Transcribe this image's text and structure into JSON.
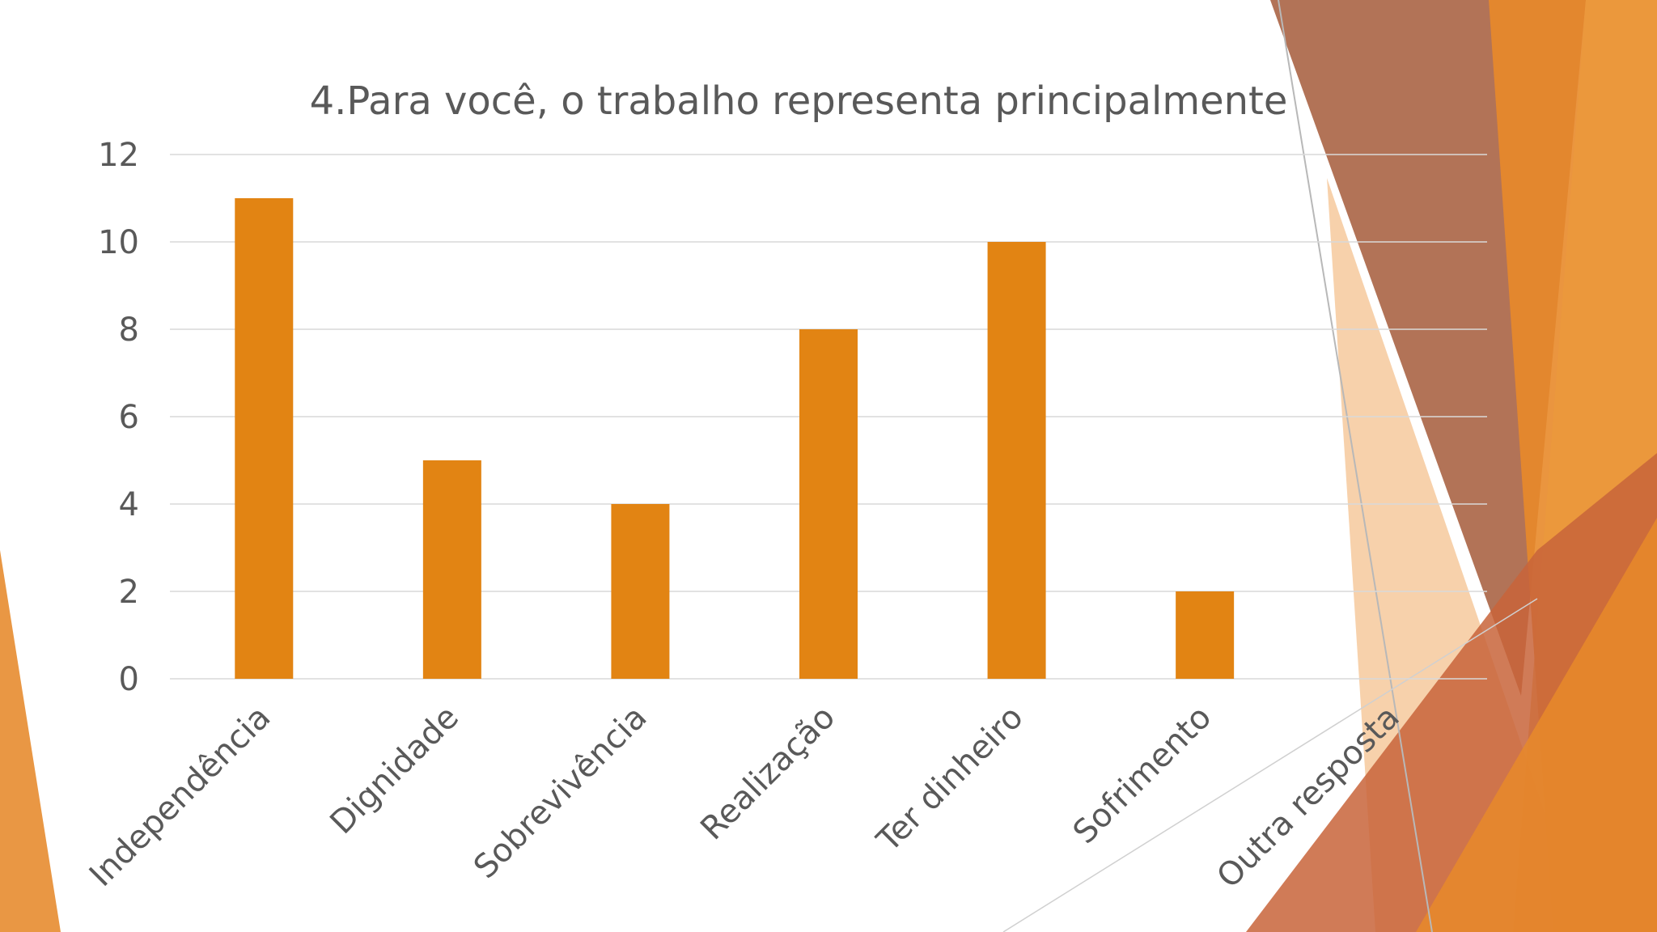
{
  "chart_data": {
    "type": "bar",
    "title": "4.Para você, o trabalho representa principalmente",
    "categories": [
      "Independência",
      "Dignidade",
      "Sobrevivência",
      "Realização",
      "Ter dinheiro",
      "Sofrimento",
      "Outra resposta"
    ],
    "values": [
      11,
      5,
      4,
      8,
      10,
      2,
      0
    ],
    "ylim": [
      0,
      12
    ],
    "yticks": [
      0,
      2,
      4,
      6,
      8,
      10,
      12
    ],
    "xlabel": "",
    "ylabel": "",
    "grid": true,
    "legend": "none",
    "bar_color": "#e28413"
  },
  "colors": {
    "accent": "#e28413",
    "accent_dark": "#a85c3a",
    "accent_light": "#f5c99a",
    "text": "#595959",
    "grid": "#d9d9d9"
  }
}
